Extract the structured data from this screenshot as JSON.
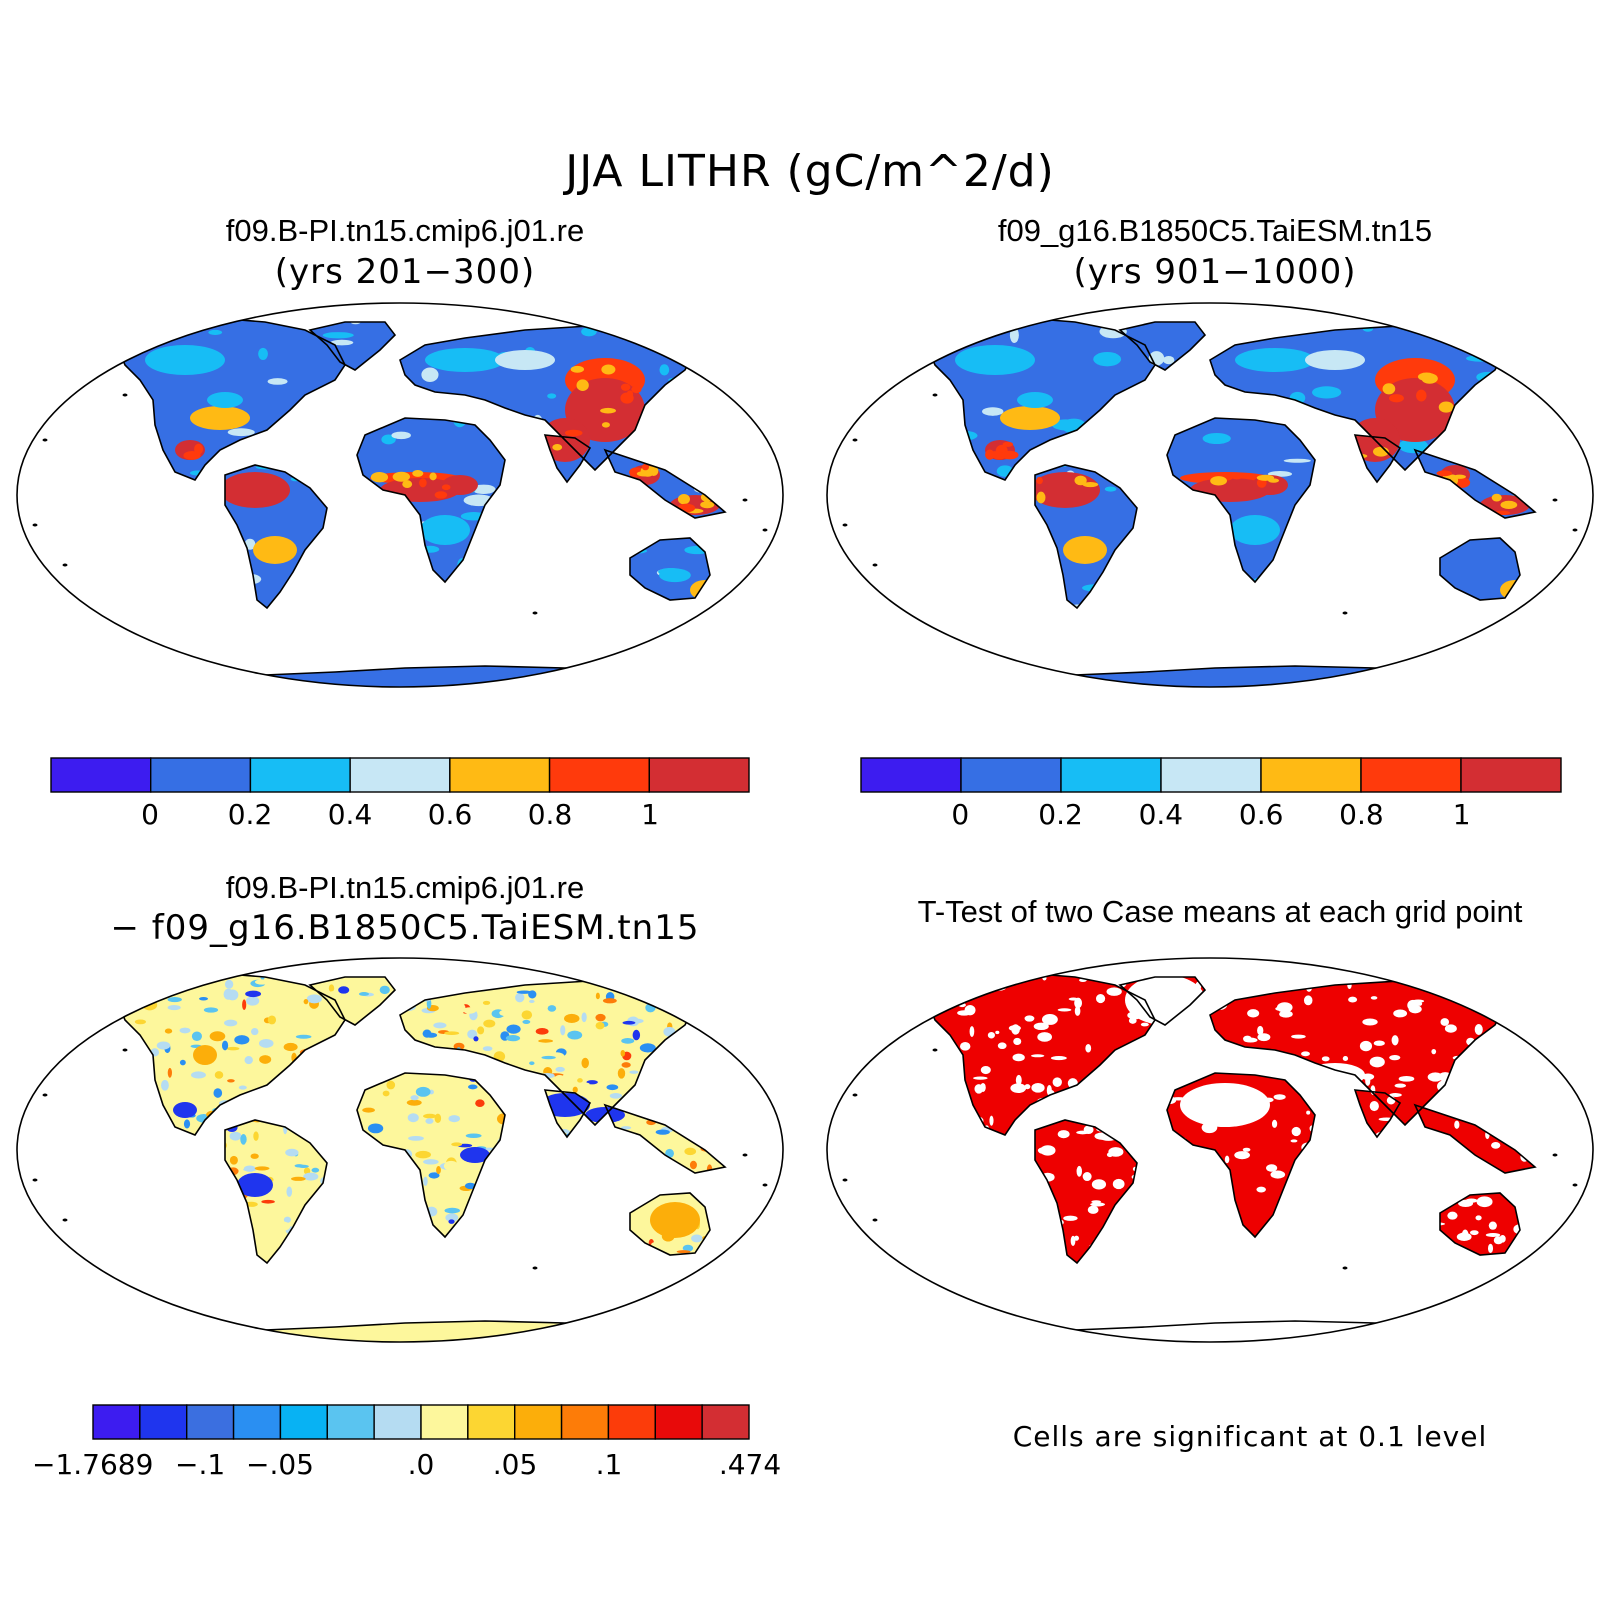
{
  "figure": {
    "main_title": "JJA LITHR (gC/m^2/d)"
  },
  "panels": {
    "top_left": {
      "title": "f09.B-PI.tn15.cmip6.j01.re",
      "subtitle": "(yrs 201−300)"
    },
    "top_right": {
      "title": "f09_g16.B1850C5.TaiESM.tn15",
      "subtitle": "(yrs 901−1000)"
    },
    "bottom_left": {
      "title": "f09.B-PI.tn15.cmip6.j01.re",
      "subtitle": "− f09_g16.B1850C5.TaiESM.tn15"
    },
    "bottom_right": {
      "title": "T-Test of two Case means at each grid point",
      "note": "Cells are significant at 0.1 level"
    }
  },
  "colorbars": {
    "case": {
      "colors": [
        "#3d1cf0",
        "#366fe4",
        "#17bdf5",
        "#c7e7f5",
        "#ffba14",
        "#ff3a0c",
        "#d32e33"
      ],
      "ticks": [
        "0",
        "0.2",
        "0.4",
        "0.6",
        "0.8",
        "1"
      ]
    },
    "diff": {
      "colors": [
        "#3d1cf0",
        "#1f35ee",
        "#3b6fe0",
        "#2a8ff2",
        "#08b2f3",
        "#5ac4f0",
        "#b5dcf2",
        "#fdf79c",
        "#fcd632",
        "#fcae0a",
        "#fd7c08",
        "#fc3c0a",
        "#e80a0a",
        "#d32e33"
      ],
      "ticks": [
        "−1.7689",
        "−.1",
        "−.05",
        ".0",
        ".05",
        ".1",
        ".474"
      ]
    }
  },
  "map_style": {
    "ocean": "#ffffff",
    "coast": "#000000",
    "significant_color": "#ee0000"
  }
}
